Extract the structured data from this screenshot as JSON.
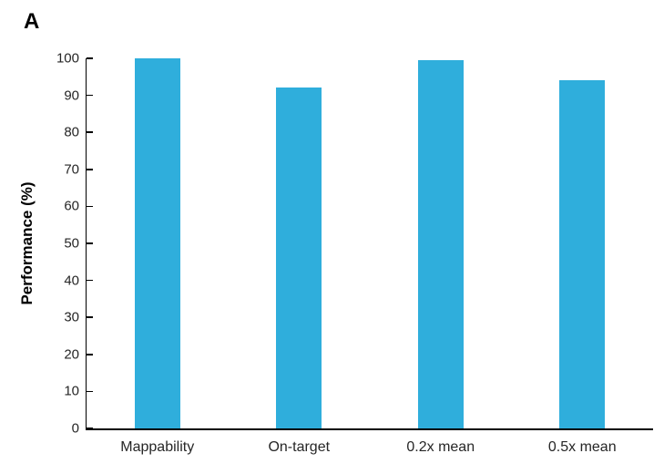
{
  "panel_label": "A",
  "colors": {
    "bar": "#2FAEDC",
    "axis": "#000000",
    "text": "#262626"
  },
  "chart_data": {
    "type": "bar",
    "title": "",
    "categories": [
      "Mappability",
      "On-target",
      "0.2x mean",
      "0.5x mean"
    ],
    "values": [
      100,
      92,
      99.5,
      94
    ],
    "xlabel": "",
    "ylabel": "Performance (%)",
    "ylim": [
      0,
      100
    ],
    "ytick_step": 10,
    "ytick_labels": [
      "0",
      "10",
      "20",
      "30",
      "40",
      "50",
      "60",
      "70",
      "80",
      "90",
      "100"
    ],
    "grid": false,
    "legend": "none",
    "bar_color": "#2FAEDC",
    "spines": [
      "left",
      "bottom"
    ],
    "tick_direction": "in"
  }
}
